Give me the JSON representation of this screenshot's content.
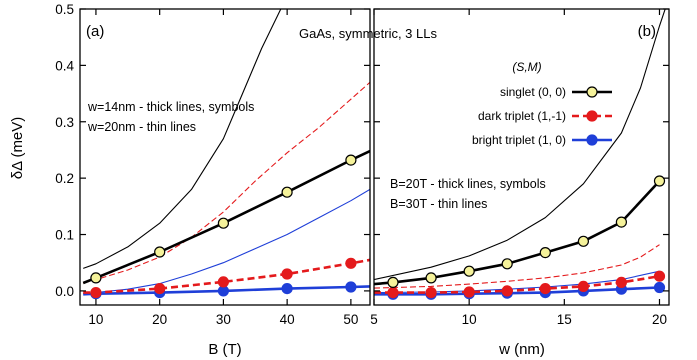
{
  "figure_title": "GaAs, symmetric, 3 LLs",
  "legend": {
    "header": "(S,M)",
    "entries": [
      {
        "label": "singlet (0, 0)",
        "series": "singlet"
      },
      {
        "label": "dark triplet (1,-1)",
        "series": "dark"
      },
      {
        "label": "bright triplet (1, 0)",
        "series": "bright"
      }
    ]
  },
  "colors": {
    "singlet": "#000000",
    "singlet_marker": "#f5f29a",
    "dark": "#e41a1c",
    "bright": "#1f3fd8"
  },
  "chart_data": [
    {
      "type": "line",
      "panel": "(a)",
      "xlabel": "B (T)",
      "ylabel": "δΔ (meV)",
      "xlim": [
        7.5,
        53
      ],
      "ylim": [
        -0.025,
        0.5
      ],
      "xticks": [
        10,
        20,
        30,
        40,
        50
      ],
      "yticks": [
        0.0,
        0.1,
        0.2,
        0.3,
        0.4,
        0.5
      ],
      "ytick_labels": [
        "0.0",
        "0.1",
        "0.2",
        "0.3",
        "0.4",
        "0.5"
      ],
      "annotations": [
        "w=14nm - thick lines, symbols",
        "w=20nm - thin lines"
      ],
      "series": [
        {
          "name": "singlet (0, 0)",
          "key": "singlet",
          "group": "w=14nm",
          "style": "thick-solid",
          "markers": true,
          "x": [
            8,
            10,
            20,
            30,
            40,
            50,
            53
          ],
          "y": [
            0.014,
            0.023,
            0.069,
            0.12,
            0.175,
            0.232,
            0.248
          ]
        },
        {
          "name": "dark triplet (1,-1)",
          "key": "dark",
          "group": "w=14nm",
          "style": "thick-dashed",
          "markers": true,
          "x": [
            8,
            10,
            20,
            30,
            40,
            50,
            53
          ],
          "y": [
            -0.003,
            -0.003,
            0.004,
            0.016,
            0.03,
            0.049,
            0.055
          ]
        },
        {
          "name": "bright triplet (1, 0)",
          "key": "bright",
          "group": "w=14nm",
          "style": "thick-solid",
          "markers": true,
          "x": [
            8,
            10,
            20,
            30,
            40,
            50,
            53
          ],
          "y": [
            -0.006,
            -0.005,
            -0.003,
            0.0,
            0.004,
            0.007,
            0.008
          ]
        },
        {
          "name": "singlet (0, 0)",
          "key": "singlet",
          "group": "w=20nm",
          "style": "thin-solid",
          "markers": false,
          "x": [
            8,
            10,
            15,
            20,
            25,
            30,
            33,
            36,
            39
          ],
          "y": [
            0.04,
            0.048,
            0.078,
            0.12,
            0.18,
            0.27,
            0.35,
            0.43,
            0.5
          ]
        },
        {
          "name": "dark triplet (1,-1)",
          "key": "dark",
          "group": "w=20nm",
          "style": "thin-dashed",
          "markers": false,
          "x": [
            8,
            10,
            15,
            20,
            25,
            30,
            35,
            40,
            45,
            50,
            53
          ],
          "y": [
            0.014,
            0.02,
            0.037,
            0.06,
            0.095,
            0.14,
            0.195,
            0.245,
            0.29,
            0.34,
            0.37
          ]
        },
        {
          "name": "bright triplet (1, 0)",
          "key": "bright",
          "group": "w=20nm",
          "style": "thin-solid",
          "markers": false,
          "x": [
            8,
            10,
            15,
            20,
            25,
            30,
            35,
            40,
            45,
            50,
            53
          ],
          "y": [
            -0.005,
            -0.003,
            0.003,
            0.013,
            0.03,
            0.05,
            0.075,
            0.1,
            0.13,
            0.16,
            0.18
          ]
        }
      ]
    },
    {
      "type": "line",
      "panel": "(b)",
      "xlabel": "w (nm)",
      "xlim": [
        5,
        20.5
      ],
      "ylim": [
        -0.025,
        0.5
      ],
      "xticks": [
        5,
        10,
        15,
        20
      ],
      "annotations": [
        "B=20T - thick lines, symbols",
        "B=30T - thin lines"
      ],
      "series": [
        {
          "name": "singlet (0, 0)",
          "key": "singlet",
          "group": "B=20T",
          "style": "thick-solid",
          "markers": true,
          "x": [
            5,
            6,
            8,
            10,
            12,
            14,
            16,
            18,
            20
          ],
          "y": [
            0.012,
            0.015,
            0.023,
            0.035,
            0.048,
            0.068,
            0.088,
            0.122,
            0.195
          ]
        },
        {
          "name": "dark triplet (1,-1)",
          "key": "dark",
          "group": "B=20T",
          "style": "thick-dashed",
          "markers": true,
          "x": [
            5,
            6,
            8,
            10,
            12,
            14,
            16,
            18,
            20
          ],
          "y": [
            -0.003,
            -0.003,
            -0.003,
            -0.002,
            0.0,
            0.004,
            0.008,
            0.015,
            0.026
          ]
        },
        {
          "name": "bright triplet (1, 0)",
          "key": "bright",
          "group": "B=20T",
          "style": "thick-solid",
          "markers": true,
          "x": [
            5,
            6,
            8,
            10,
            12,
            14,
            16,
            18,
            20
          ],
          "y": [
            -0.006,
            -0.006,
            -0.006,
            -0.005,
            -0.004,
            -0.003,
            0.0,
            0.003,
            0.006
          ]
        },
        {
          "name": "singlet (0, 0)",
          "key": "singlet",
          "group": "B=30T",
          "style": "thin-solid",
          "markers": false,
          "x": [
            5,
            8,
            10,
            12,
            14,
            16,
            18,
            19,
            20,
            20.3
          ],
          "y": [
            0.02,
            0.042,
            0.062,
            0.09,
            0.13,
            0.19,
            0.28,
            0.36,
            0.47,
            0.5
          ]
        },
        {
          "name": "dark triplet (1,-1)",
          "key": "dark",
          "group": "B=30T",
          "style": "thin-dashed",
          "markers": false,
          "x": [
            5,
            8,
            10,
            12,
            14,
            16,
            18,
            19,
            20
          ],
          "y": [
            0.005,
            0.008,
            0.012,
            0.017,
            0.023,
            0.032,
            0.046,
            0.06,
            0.082
          ]
        },
        {
          "name": "bright triplet (1, 0)",
          "key": "bright",
          "group": "B=30T",
          "style": "thin-solid",
          "markers": false,
          "x": [
            5,
            8,
            10,
            12,
            14,
            16,
            18,
            20
          ],
          "y": [
            -0.003,
            -0.002,
            0.0,
            0.003,
            0.007,
            0.012,
            0.02,
            0.035
          ]
        }
      ]
    }
  ]
}
